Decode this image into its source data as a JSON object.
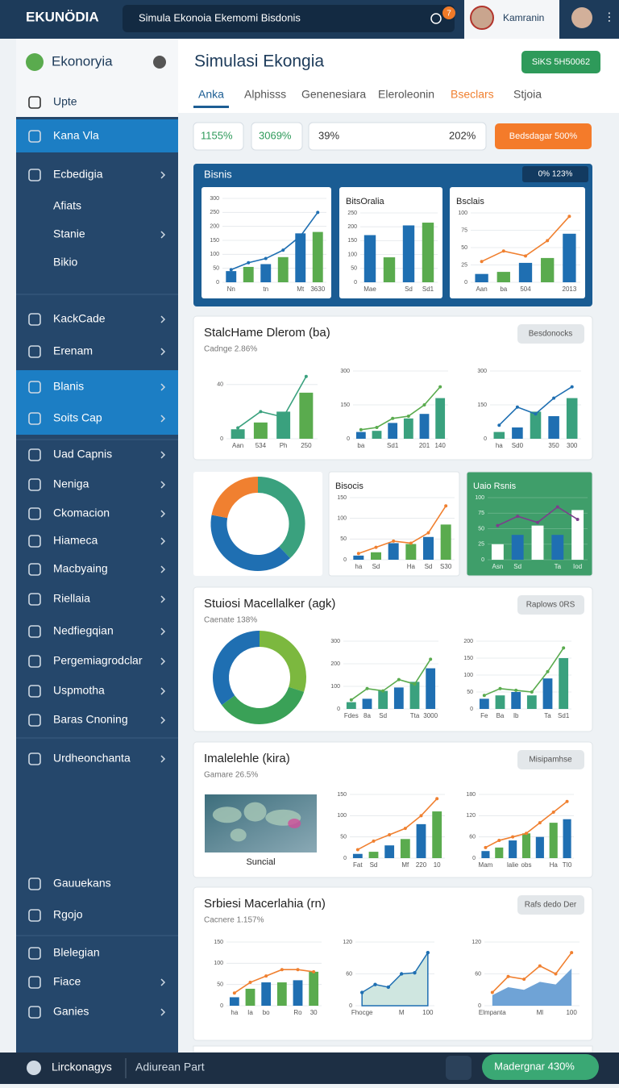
{
  "topbar": {
    "logo": "EKUNÖDIA",
    "search": "Simula Ekonoia Ekemomi Bisdonis",
    "badge": "7",
    "user": "Kamranin"
  },
  "sidebar": {
    "brand": "Ekonoryia",
    "items": [
      {
        "label": "Upte"
      },
      {
        "label": "Kana Vla",
        "active": true
      },
      {
        "label": "Ecbedigia"
      },
      {
        "label": "Afiats"
      },
      {
        "label": "Stanie"
      },
      {
        "label": "Bikio"
      },
      {
        "label": "KackCade"
      },
      {
        "label": "Erenam"
      },
      {
        "label": "Blanis",
        "active": true
      },
      {
        "label": "Soits Cap",
        "active": true
      },
      {
        "label": "Uad Capnis"
      },
      {
        "label": "Neniga"
      },
      {
        "label": "Ckomacion"
      },
      {
        "label": "Hiameca"
      },
      {
        "label": "Macbyaing"
      },
      {
        "label": "Riellaia"
      },
      {
        "label": "Nedfiegqian"
      },
      {
        "label": "Pergemiagrodclar"
      },
      {
        "label": "Uspmotha"
      },
      {
        "label": "Baras Cnoning"
      },
      {
        "label": "Urdheonchanta"
      },
      {
        "label": "Gauuekans"
      },
      {
        "label": "Rgojo"
      },
      {
        "label": "Blelegian"
      },
      {
        "label": "Fiace"
      },
      {
        "label": "Ganies"
      }
    ]
  },
  "footer": {
    "brand": "Lirckonagys",
    "link": "Adiurean Part",
    "button": "Madergnar 430%"
  },
  "header": {
    "title": "Simulasi Ekongia",
    "badge": "SiKS 5H50062",
    "tabs": [
      "Anka",
      "Alphisss",
      "Genenesiara",
      "Eleroleonin",
      "Bseclars",
      "Stjoia"
    ]
  },
  "stats": [
    "1155%",
    "3069%",
    "39%",
    "202%"
  ],
  "stats_button": "Bedsdagar 500%",
  "bisnis": {
    "title": "Bisnis",
    "badge": "0% 123%",
    "charts": [
      {
        "type": "bar",
        "categories": [
          "Nn",
          null,
          "tn",
          null,
          "Mt",
          "3630"
        ],
        "values": [
          40,
          55,
          65,
          90,
          175,
          180
        ],
        "line": [
          45,
          70,
          85,
          115,
          165,
          250
        ],
        "ylim": [
          0,
          300
        ],
        "yticks": [
          0,
          50,
          100,
          150,
          200,
          250,
          300
        ],
        "colors": [
          "#1f6fb2",
          "#5aab4e"
        ],
        "line_color": "#1f6fb2"
      },
      {
        "type": "bar",
        "title": "BitsOralia",
        "categories": [
          "Mae",
          null,
          "Sd",
          "Sd1"
        ],
        "values": [
          170,
          90,
          205,
          215
        ],
        "ylim": [
          0,
          250
        ],
        "yticks": [
          0,
          50,
          100,
          150,
          200,
          250
        ],
        "colors": [
          "#1f6fb2",
          "#5aab4e"
        ]
      },
      {
        "type": "bar",
        "title": "Bsclais",
        "categories": [
          "Aan",
          "ba",
          "504",
          null,
          "2013"
        ],
        "values": [
          12,
          15,
          28,
          35,
          70
        ],
        "line": [
          30,
          45,
          38,
          60,
          95
        ],
        "ylim": [
          0,
          100
        ],
        "yticks": [
          0,
          25,
          50,
          75,
          100
        ],
        "colors": [
          "#1f6fb2",
          "#5aab4e"
        ],
        "line_color": "#f08030"
      }
    ]
  },
  "mix": {
    "items": [
      {
        "type": "donut",
        "values": [
          38,
          40,
          22
        ],
        "colors": [
          "#3aa17e",
          "#1f6fb2",
          "#f08030"
        ]
      },
      {
        "type": "bar",
        "title": "Bisocis",
        "categories": [
          "ha",
          "Sd",
          null,
          "Ha",
          "Sd",
          "S30"
        ],
        "values": [
          10,
          18,
          40,
          38,
          55,
          85
        ],
        "line": [
          15,
          30,
          45,
          40,
          65,
          130
        ],
        "ylim": [
          0,
          150
        ],
        "yticks": [
          0,
          50,
          100,
          150
        ],
        "colors": [
          "#1f6fb2",
          "#5aab4e"
        ],
        "line_color": "#f08030"
      },
      {
        "type": "bar",
        "title": "Uaio Rsnis",
        "categories": [
          "Asn",
          "Sd",
          null,
          "Ta",
          "Iod"
        ],
        "values": [
          25,
          40,
          55,
          40,
          80
        ],
        "line": [
          55,
          70,
          60,
          85,
          65
        ],
        "ylim": [
          0,
          100
        ],
        "yticks": [
          0,
          25,
          50,
          75,
          100
        ],
        "colors": [
          "#ffffff",
          "#1f6fb2"
        ],
        "line_color": "#7b3f8c"
      }
    ]
  },
  "sections": [
    {
      "title": "StalcHame Dlerom (ba)",
      "subtitle": "Cadnge 2.86%",
      "button": "Besdonocks",
      "items": [
        {
          "type": "bar",
          "categories": [
            "Aan",
            "534",
            "Ph",
            "250"
          ],
          "values": [
            7,
            12,
            20,
            34
          ],
          "line": [
            8,
            20,
            16,
            46
          ],
          "ylim": [
            0,
            50
          ],
          "yticks": [
            0,
            40
          ],
          "colors": [
            "#3aa17e",
            "#5aab4e"
          ],
          "line_color": "#3aa17e"
        },
        {
          "type": "bar",
          "categories": [
            "ba",
            null,
            "Sd1",
            null,
            "201",
            "140"
          ],
          "values": [
            30,
            35,
            70,
            90,
            110,
            180
          ],
          "line": [
            40,
            50,
            90,
            100,
            150,
            230
          ],
          "ylim": [
            0,
            300
          ],
          "yticks": [
            0,
            150,
            300
          ],
          "colors": [
            "#1f6fb2",
            "#3aa17e"
          ],
          "line_color": "#5aab4e"
        },
        {
          "type": "bar",
          "categories": [
            "ha",
            "Sd0",
            null,
            "350",
            "300"
          ],
          "values": [
            30,
            50,
            120,
            100,
            180
          ],
          "line": [
            60,
            140,
            110,
            180,
            230
          ],
          "ylim": [
            0,
            300
          ],
          "yticks": [
            0,
            150,
            300
          ],
          "colors": [
            "#3aa17e",
            "#1f6fb2"
          ],
          "line_color": "#1f6fb2"
        }
      ]
    },
    {
      "title": "Stuiosi Macellalker (agk)",
      "subtitle": "Caenate 138%",
      "button": "Raplows 0RS",
      "items": [
        {
          "type": "donut",
          "values": [
            30,
            35,
            35
          ],
          "colors": [
            "#7cb83f",
            "#3aa157",
            "#1f6fb2"
          ]
        },
        {
          "type": "bar",
          "categories": [
            "Fdes",
            "8a",
            "Sd",
            null,
            "Tta",
            "3000"
          ],
          "values": [
            30,
            45,
            80,
            95,
            120,
            180
          ],
          "line": [
            40,
            90,
            80,
            130,
            110,
            220
          ],
          "ylim": [
            0,
            300
          ],
          "yticks": [
            0,
            100,
            200,
            300
          ],
          "colors": [
            "#3aa17e",
            "#1f6fb2"
          ],
          "line_color": "#5aab4e"
        },
        {
          "type": "bar",
          "categories": [
            "Fe",
            "Ba",
            "Ib",
            null,
            "Ta",
            "Sd1"
          ],
          "values": [
            30,
            40,
            50,
            40,
            90,
            150
          ],
          "line": [
            40,
            60,
            55,
            50,
            110,
            180
          ],
          "ylim": [
            0,
            200
          ],
          "yticks": [
            0,
            50,
            100,
            150,
            200
          ],
          "colors": [
            "#1f6fb2",
            "#3aa17e"
          ],
          "line_color": "#5aab4e"
        }
      ]
    },
    {
      "title": "Imalelehle (kira)",
      "subtitle": "Gamare 26.5%",
      "button": "Misipamhse",
      "items": [
        {
          "type": "map",
          "label": "Suncial"
        },
        {
          "type": "bar",
          "categories": [
            "Fat",
            "Sd",
            null,
            "Mf",
            "220",
            "10"
          ],
          "values": [
            10,
            15,
            30,
            45,
            80,
            110
          ],
          "line": [
            20,
            40,
            55,
            70,
            100,
            140
          ],
          "ylim": [
            0,
            150
          ],
          "yticks": [
            0,
            50,
            100,
            150
          ],
          "colors": [
            "#1f6fb2",
            "#5aab4e"
          ],
          "line_color": "#f08030"
        },
        {
          "type": "bar",
          "categories": [
            "Mam",
            null,
            "lalie",
            "obs",
            null,
            "Ha",
            "TI0"
          ],
          "values": [
            20,
            30,
            50,
            70,
            60,
            100,
            110
          ],
          "line": [
            30,
            50,
            60,
            70,
            100,
            130,
            160
          ],
          "ylim": [
            0,
            180
          ],
          "yticks": [
            0,
            60,
            120,
            180
          ],
          "colors": [
            "#1f6fb2",
            "#5aab4e"
          ],
          "line_color": "#f08030"
        }
      ]
    },
    {
      "title": "Srbiesi Macerlahia (rn)",
      "subtitle": "Cacnere 1.157%",
      "button": "Rafs dedo Der",
      "items": [
        {
          "type": "bar",
          "categories": [
            "ha",
            "Ia",
            "bo",
            null,
            "Ro",
            "30"
          ],
          "values": [
            20,
            40,
            55,
            55,
            60,
            80
          ],
          "line": [
            30,
            55,
            70,
            85,
            85,
            80
          ],
          "ylim": [
            0,
            150
          ],
          "yticks": [
            0,
            50,
            100,
            150
          ],
          "colors": [
            "#1f6fb2",
            "#5aab4e"
          ],
          "line_color": "#f08030"
        },
        {
          "type": "area",
          "categories": [
            "Fhocge",
            null,
            null,
            "M",
            null,
            "100"
          ],
          "values": [
            25,
            40,
            35,
            60,
            62,
            100
          ],
          "ylim": [
            0,
            120
          ],
          "yticks": [
            0,
            60,
            120
          ],
          "colors": [
            "#cfe6e0"
          ],
          "line_color": "#1f6fb2"
        },
        {
          "type": "area",
          "categories": [
            "Elmpanta",
            null,
            null,
            "Ml",
            null,
            "100"
          ],
          "values": [
            20,
            35,
            30,
            45,
            40,
            70
          ],
          "line": [
            25,
            55,
            50,
            75,
            60,
            100
          ],
          "ylim": [
            0,
            120
          ],
          "yticks": [
            0,
            60,
            120
          ],
          "colors": [
            "#6fa3d6"
          ],
          "line_color": "#f08030"
        }
      ]
    }
  ]
}
